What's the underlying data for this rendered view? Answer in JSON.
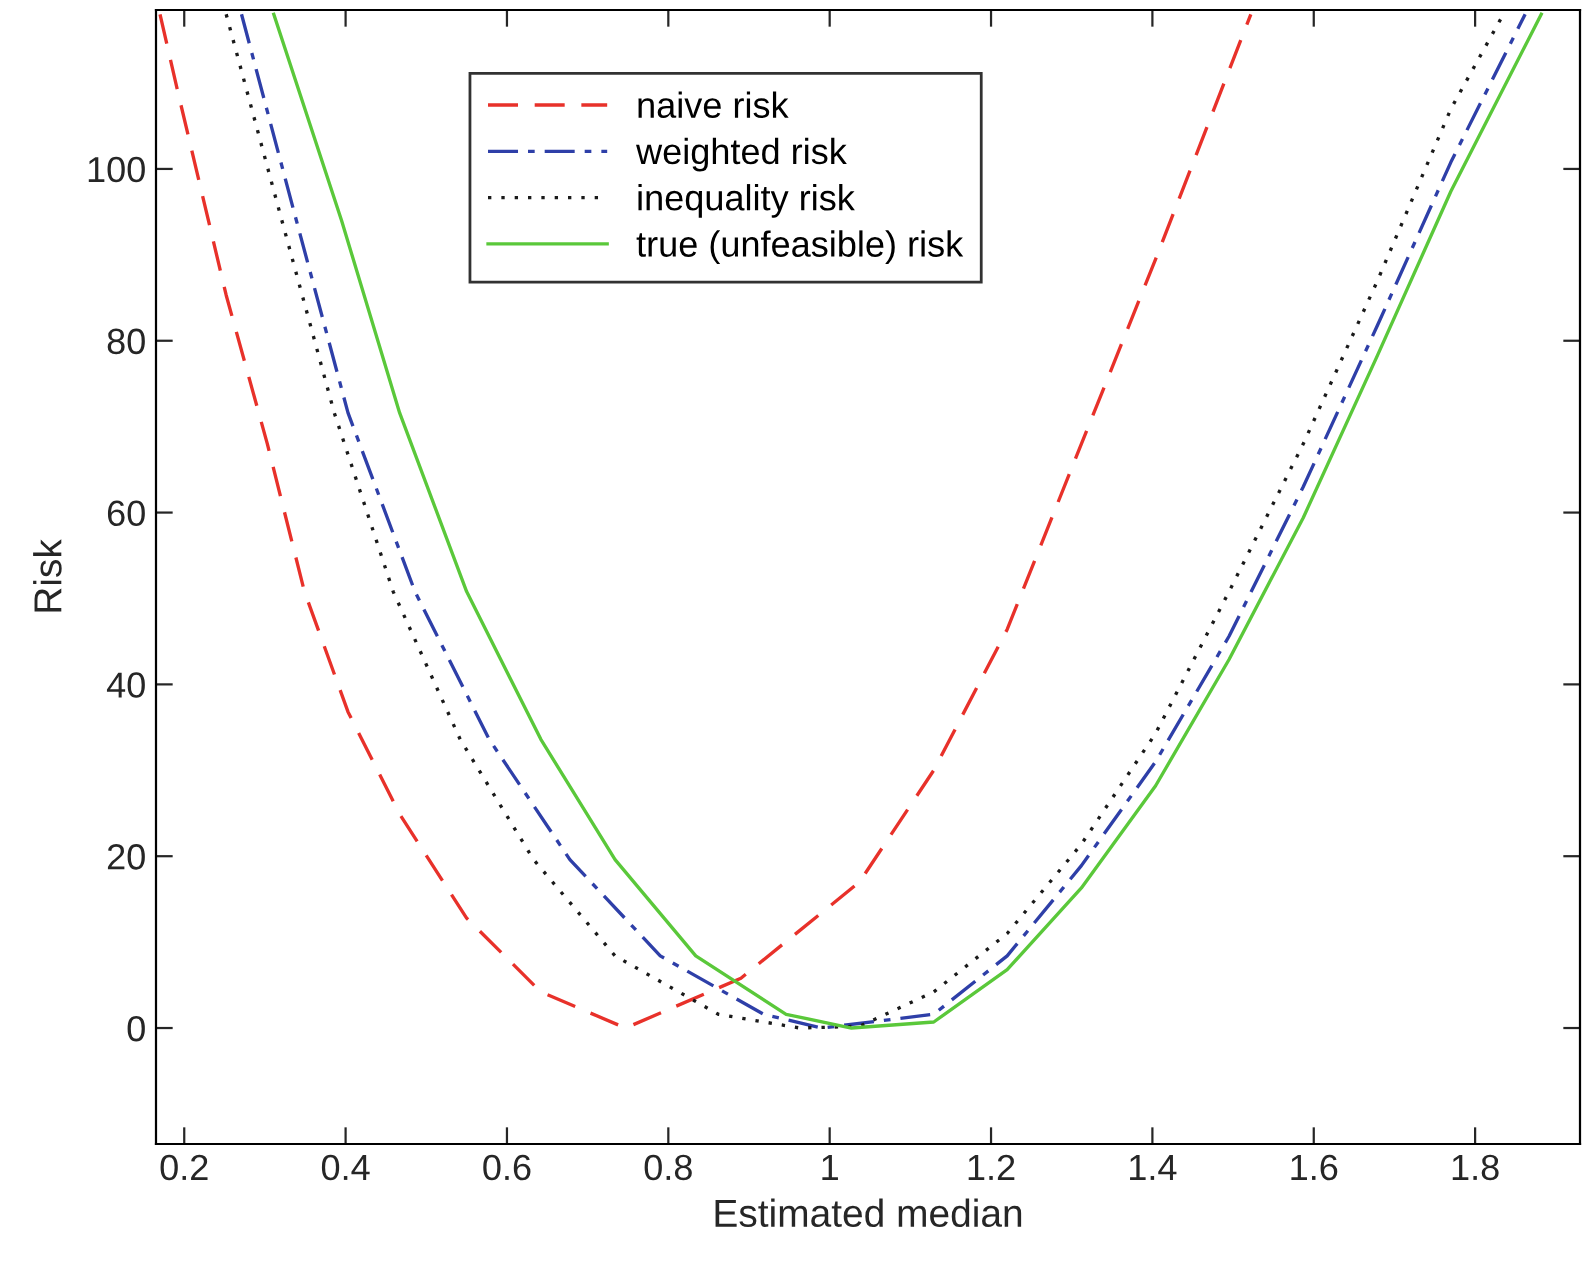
{
  "chart_data": {
    "type": "line",
    "xlabel": "Estimated median",
    "ylabel": "Risk",
    "xlim": [
      0.165,
      1.93
    ],
    "ylim": [
      -13.5,
      118.5
    ],
    "xticks": [
      {
        "value": 0.2,
        "label": "0.2"
      },
      {
        "value": 0.4,
        "label": "0.4"
      },
      {
        "value": 0.6,
        "label": "0.6"
      },
      {
        "value": 0.8,
        "label": "0.8"
      },
      {
        "value": 1,
        "label": "1"
      },
      {
        "value": 1.2,
        "label": "1.2"
      },
      {
        "value": 1.4,
        "label": "1.4"
      },
      {
        "value": 1.6,
        "label": "1.6"
      },
      {
        "value": 1.8,
        "label": "1.8"
      }
    ],
    "yticks": [
      0,
      20,
      40,
      60,
      80,
      100
    ],
    "grid": false,
    "legend": "top",
    "marker": "none",
    "series": [
      {
        "name": "naive risk",
        "color": "#e8312a",
        "line_style": "dashed",
        "x": [
          0.17,
          0.193,
          0.252,
          0.303,
          0.349,
          0.403,
          0.467,
          0.55,
          0.642,
          0.747,
          0.89,
          1.037,
          1.129,
          1.22,
          1.312,
          1.404,
          1.522
        ],
        "values": [
          118,
          108.6,
          85.3,
          68,
          50.8,
          36.8,
          24.9,
          12.8,
          4.2,
          0,
          5.8,
          17,
          30,
          46.4,
          68,
          89.5,
          118
        ]
      },
      {
        "name": "weighted risk",
        "color": "#2e3fa8",
        "line_style": "dashdot",
        "x": [
          0.271,
          0.339,
          0.403,
          0.486,
          0.578,
          0.678,
          0.79,
          0.918,
          0.99,
          1.129,
          1.22,
          1.312,
          1.404,
          1.495,
          1.587,
          1.679,
          1.77,
          1.862
        ],
        "values": [
          118,
          94,
          71.6,
          50.8,
          33.6,
          19.6,
          8.4,
          1.6,
          0,
          1.6,
          8.4,
          18.9,
          31,
          45.6,
          63,
          81.8,
          100.8,
          118
        ]
      },
      {
        "name": "inequality risk",
        "color": "#1a1a1a",
        "line_style": "dotted",
        "x": [
          0.252,
          0.321,
          0.386,
          0.459,
          0.542,
          0.633,
          0.734,
          0.862,
          0.963,
          1.037,
          1.129,
          1.22,
          1.312,
          1.404,
          1.495,
          1.587,
          1.679,
          1.77,
          1.835
        ],
        "values": [
          118,
          94,
          71.6,
          50.8,
          33.6,
          19.6,
          8.4,
          1.6,
          0,
          0.2,
          4.2,
          11,
          21.4,
          34.3,
          50.8,
          68,
          87,
          107,
          118
        ]
      },
      {
        "name": "true (unfeasible) risk",
        "color": "#5ac83a",
        "line_style": "solid",
        "x": [
          0.311,
          0.395,
          0.467,
          0.55,
          0.642,
          0.734,
          0.834,
          0.946,
          1.027,
          1.129,
          1.22,
          1.312,
          1.404,
          1.495,
          1.587,
          1.679,
          1.77,
          1.882
        ],
        "values": [
          118,
          94,
          71.6,
          50.8,
          33.6,
          19.6,
          8.4,
          1.6,
          0,
          0.7,
          6.8,
          16.3,
          28.2,
          42.9,
          59.4,
          78.3,
          97.4,
          118
        ]
      }
    ]
  }
}
